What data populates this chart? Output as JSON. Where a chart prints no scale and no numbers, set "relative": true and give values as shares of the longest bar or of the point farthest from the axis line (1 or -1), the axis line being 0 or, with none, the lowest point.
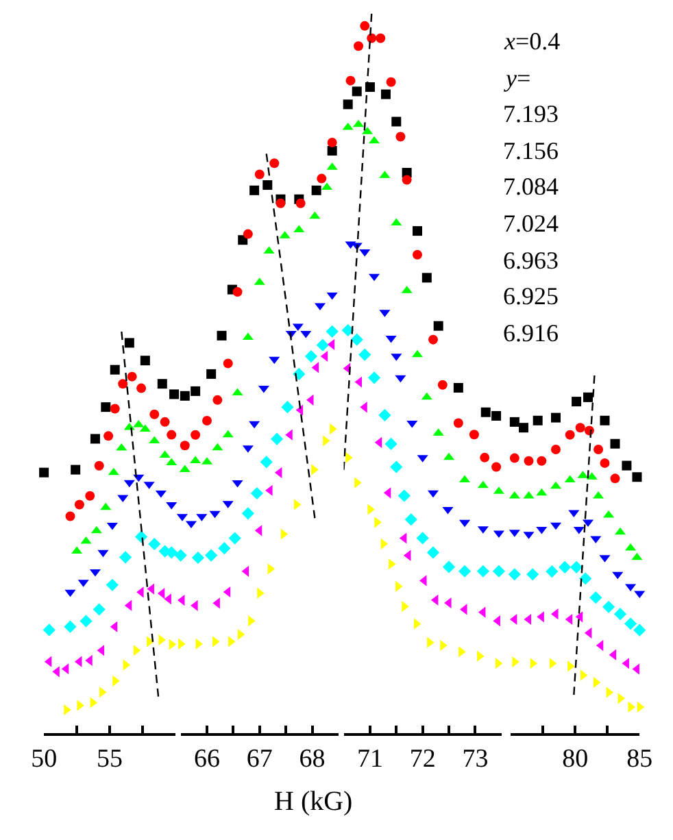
{
  "chart_data": [
    {
      "type": "scatter",
      "relative": true,
      "tick_labels": "x",
      "xlim": [
        50,
        60
      ],
      "xticks": [
        50,
        {
          "value": 52.5,
          "label": null
        },
        55,
        {
          "value": 57.5,
          "label": null
        }
      ],
      "series": [
        {
          "color": "#000000",
          "marker": "square",
          "x": [
            50,
            52.4,
            53.9,
            54.7,
            55.4,
            56.5,
            57.7,
            59.0,
            59.9
          ],
          "values": [
            0.649,
            0.656,
            0.733,
            0.812,
            0.905,
            0.972,
            0.928,
            0.87,
            0.844
          ]
        },
        {
          "color": "#ff0000",
          "marker": "circle",
          "x": [
            52.0,
            52.7,
            53.5,
            54.2,
            54.9,
            55.4,
            56.0,
            56.7,
            57.4,
            58.4,
            59.2,
            59.7
          ],
          "values": [
            0.54,
            0.569,
            0.591,
            0.666,
            0.74,
            0.808,
            0.87,
            0.888,
            0.859,
            0.794,
            0.775,
            0.743
          ]
        },
        {
          "color": "#00ff00",
          "marker": "triangle",
          "x": [
            52.5,
            53.2,
            54.0,
            54.7,
            55.3,
            55.9,
            56.5,
            57.2,
            57.7,
            58.4,
            59.2,
            59.7
          ],
          "values": [
            0.453,
            0.478,
            0.504,
            0.562,
            0.649,
            0.71,
            0.761,
            0.768,
            0.757,
            0.728,
            0.692,
            0.673
          ]
        },
        {
          "color": "#0000ff",
          "marker": "triangle-down",
          "x": [
            52.0,
            53.0,
            53.9,
            54.5,
            55.2,
            56.0,
            56.5,
            57.2,
            58.0,
            58.9,
            59.7
          ],
          "values": [
            0.351,
            0.376,
            0.402,
            0.45,
            0.518,
            0.587,
            0.624,
            0.638,
            0.62,
            0.598,
            0.569
          ]
        },
        {
          "color": "#00ffff",
          "marker": "diamond",
          "x": [
            50.4,
            52.0,
            53.2,
            54.2,
            55.2,
            56.2,
            57.4,
            58.4,
            59.2,
            59.7
          ],
          "values": [
            0.257,
            0.265,
            0.279,
            0.308,
            0.369,
            0.438,
            0.489,
            0.471,
            0.453,
            0.45
          ]
        },
        {
          "color": "#ff00ff",
          "marker": "triangle-left",
          "x": [
            50.4,
            51.0,
            51.7,
            52.7,
            53.5,
            54.4,
            55.4,
            56.5,
            57.4,
            58.2,
            59.0,
            59.5
          ],
          "values": [
            0.178,
            0.153,
            0.16,
            0.178,
            0.181,
            0.206,
            0.265,
            0.318,
            0.351,
            0.359,
            0.348,
            0.334
          ]
        },
        {
          "color": "#ffff00",
          "marker": "triangle-right",
          "x": [
            51.7,
            52.7,
            53.7,
            54.4,
            55.4,
            56.2,
            57.0,
            58.0,
            58.9,
            59.7
          ],
          "values": [
            0.058,
            0.069,
            0.076,
            0.102,
            0.13,
            0.17,
            0.206,
            0.228,
            0.232,
            0.221
          ]
        },
        {
          "type": "line",
          "color": "#000000",
          "marker": "none",
          "line_style": "dashed",
          "x": [
            55.9,
            58.7
          ],
          "values": [
            1,
            0.091
          ]
        }
      ]
    },
    {
      "type": "scatter",
      "relative": true,
      "tick_labels": "x",
      "xlabel": "H (kG)",
      "xlim": [
        65.5,
        68.5
      ],
      "xticks": [
        66,
        {
          "value": 66.5,
          "label": null
        },
        67,
        {
          "value": 67.5,
          "label": null
        },
        68
      ],
      "series": [
        {
          "color": "#000000",
          "marker": "square",
          "x": [
            65.58,
            65.78,
            66.08,
            66.28,
            66.48,
            66.68,
            66.9,
            67.15,
            67.4,
            67.75,
            68.08,
            68.38
          ],
          "values": [
            0.571,
            0.579,
            0.608,
            0.673,
            0.751,
            0.835,
            0.919,
            0.928,
            0.904,
            0.904,
            0.919,
            0.986
          ]
        },
        {
          "color": "#ff0000",
          "marker": "circle",
          "x": [
            65.58,
            65.78,
            66.0,
            66.2,
            66.4,
            66.58,
            66.78,
            67.0,
            67.28,
            67.4,
            67.78,
            68.18,
            68.38
          ],
          "values": [
            0.487,
            0.505,
            0.529,
            0.564,
            0.626,
            0.747,
            0.845,
            0.946,
            0.965,
            0.897,
            0.897,
            0.939,
            1
          ]
        },
        {
          "color": "#00ff00",
          "marker": "triangle",
          "x": [
            65.58,
            65.78,
            66.0,
            66.2,
            66.4,
            66.58,
            66.78,
            67.0,
            67.18,
            67.48,
            67.75,
            68.05,
            68.28,
            68.38
          ],
          "values": [
            0.446,
            0.461,
            0.459,
            0.483,
            0.505,
            0.576,
            0.67,
            0.763,
            0.816,
            0.842,
            0.852,
            0.875,
            0.924,
            0.958
          ]
        },
        {
          "color": "#0000ff",
          "marker": "triangle-down",
          "x": [
            65.53,
            65.7,
            65.9,
            66.15,
            66.4,
            66.58,
            66.78,
            66.9,
            67.08,
            67.28,
            67.6,
            67.73,
            67.88,
            68.15,
            68.38
          ],
          "values": [
            0.367,
            0.355,
            0.367,
            0.372,
            0.389,
            0.424,
            0.483,
            0.524,
            0.584,
            0.633,
            0.677,
            0.689,
            0.677,
            0.724,
            0.742
          ]
        },
        {
          "color": "#00ffff",
          "marker": "diamond",
          "x": [
            65.5,
            65.83,
            66.08,
            66.33,
            66.53,
            66.78,
            66.95,
            67.13,
            67.33,
            67.53,
            67.75,
            67.98,
            68.2,
            68.38
          ],
          "values": [
            0.301,
            0.297,
            0.301,
            0.313,
            0.33,
            0.372,
            0.406,
            0.459,
            0.498,
            0.552,
            0.608,
            0.638,
            0.657,
            0.68
          ]
        },
        {
          "color": "#ff00ff",
          "marker": "triangle-left",
          "x": [
            65.53,
            65.78,
            66.2,
            66.4,
            66.75,
            67.0,
            67.2,
            67.38,
            67.58,
            67.78,
            67.98,
            68.08,
            68.25,
            68.38
          ],
          "values": [
            0.225,
            0.216,
            0.22,
            0.239,
            0.274,
            0.343,
            0.411,
            0.441,
            0.505,
            0.547,
            0.564,
            0.619,
            0.638,
            0.658
          ]
        },
        {
          "color": "#ffff00",
          "marker": "triangle-right",
          "x": [
            65.5,
            65.83,
            66.15,
            66.45,
            66.63,
            66.83,
            67.0,
            67.2,
            67.45,
            67.7,
            68.03,
            68.25,
            68.38
          ],
          "values": [
            0.151,
            0.151,
            0.155,
            0.155,
            0.167,
            0.19,
            0.237,
            0.278,
            0.337,
            0.387,
            0.446,
            0.495,
            0.515
          ]
        },
        {
          "type": "line",
          "color": "#000000",
          "marker": "none",
          "line_style": "dashed",
          "x": [
            67.13,
            68.05
          ],
          "values": [
            0.981,
            0.364
          ]
        }
      ]
    },
    {
      "type": "scatter",
      "relative": true,
      "tick_labels": "x",
      "xlim": [
        70.5,
        73.5
      ],
      "xticks": [
        71,
        {
          "value": 71.5,
          "label": null
        },
        72,
        {
          "value": 72.5,
          "label": null
        },
        73
      ],
      "series": [
        {
          "color": "#000000",
          "marker": "square",
          "x": [
            70.58,
            70.75,
            71.0,
            71.3,
            71.5,
            71.7,
            71.9,
            72.08,
            72.3,
            72.68,
            73.2,
            73.4
          ],
          "values": [
            0.874,
            0.892,
            0.898,
            0.888,
            0.85,
            0.779,
            0.698,
            0.633,
            0.566,
            0.48,
            0.446,
            0.441
          ]
        },
        {
          "color": "#ff0000",
          "marker": "circle",
          "x": [
            70.63,
            70.78,
            70.9,
            71.03,
            71.2,
            71.4,
            71.58,
            71.7,
            71.9,
            72.2,
            72.38,
            72.68,
            72.98,
            73.18,
            73.4
          ],
          "values": [
            0.907,
            0.955,
            0.983,
            0.966,
            0.966,
            0.905,
            0.829,
            0.769,
            0.665,
            0.547,
            0.484,
            0.431,
            0.415,
            0.383,
            0.37
          ]
        },
        {
          "color": "#00ff00",
          "marker": "triangle",
          "x": [
            70.58,
            70.78,
            70.95,
            71.08,
            71.28,
            71.5,
            71.7,
            71.9,
            72.08,
            72.3,
            72.5,
            72.8,
            73.15,
            73.45
          ],
          "values": [
            0.842,
            0.846,
            0.836,
            0.823,
            0.775,
            0.709,
            0.615,
            0.526,
            0.467,
            0.417,
            0.383,
            0.352,
            0.344,
            0.336
          ]
        },
        {
          "color": "#0000ff",
          "marker": "triangle-down",
          "x": [
            70.63,
            70.75,
            70.9,
            71.08,
            71.28,
            71.4,
            71.5,
            71.58,
            71.8,
            72.0,
            72.2,
            72.48,
            72.8,
            73.15,
            73.45
          ],
          "values": [
            0.68,
            0.678,
            0.669,
            0.635,
            0.585,
            0.549,
            0.524,
            0.494,
            0.431,
            0.383,
            0.334,
            0.311,
            0.293,
            0.284,
            0.278
          ]
        },
        {
          "color": "#00ffff",
          "marker": "diamond",
          "x": [
            70.58,
            70.75,
            70.9,
            71.08,
            71.28,
            71.4,
            71.5,
            71.65,
            71.78,
            72.0,
            72.2,
            72.5,
            72.8,
            73.15,
            73.45
          ],
          "values": [
            0.56,
            0.547,
            0.526,
            0.494,
            0.442,
            0.402,
            0.37,
            0.33,
            0.297,
            0.271,
            0.251,
            0.231,
            0.225,
            0.225,
            0.225
          ]
        },
        {
          "color": "#ff00ff",
          "marker": "triangle-left",
          "x": [
            70.58,
            70.8,
            70.9,
            71.18,
            71.35,
            71.65,
            71.73,
            72.03,
            72.25,
            72.5,
            72.8,
            73.15,
            73.43
          ],
          "values": [
            0.507,
            0.488,
            0.453,
            0.404,
            0.334,
            0.271,
            0.247,
            0.212,
            0.185,
            0.181,
            0.172,
            0.168,
            0.156
          ]
        },
        {
          "color": "#ffff00",
          "marker": "triangle-right",
          "x": [
            70.58,
            70.75,
            71.0,
            71.13,
            71.25,
            71.4,
            71.53,
            71.65,
            71.88,
            72.13,
            72.38,
            72.73,
            73.08,
            73.43
          ],
          "values": [
            0.383,
            0.348,
            0.311,
            0.293,
            0.263,
            0.235,
            0.204,
            0.176,
            0.152,
            0.126,
            0.122,
            0.113,
            0.107,
            0.097
          ]
        },
        {
          "type": "line",
          "color": "#000000",
          "marker": "none",
          "line_style": "dashed",
          "x": [
            71.03,
            70.5
          ],
          "values": [
            1,
            0.366
          ]
        }
      ]
    },
    {
      "type": "scatter",
      "relative": true,
      "tick_labels": "x",
      "xlim": [
        75,
        85
      ],
      "xticks": [
        {
          "value": 77.5,
          "label": null
        },
        80,
        {
          "value": 82.5,
          "label": null
        },
        85
      ],
      "annotations": [
        "x=0.4",
        "y=",
        "7.193",
        "7.156",
        "7.084",
        "7.024",
        "6.963",
        "6.925",
        "6.916"
      ],
      "series": [
        {
          "color": "#000000",
          "marker": "square",
          "x": [
            75.3,
            76.0,
            77.1,
            78.5,
            80.1,
            81.0,
            82.3,
            83.1,
            84.0,
            84.8
          ],
          "values": [
            0.87,
            0.854,
            0.874,
            0.882,
            0.927,
            0.939,
            0.874,
            0.809,
            0.748,
            0.716
          ]
        },
        {
          "color": "#ff0000",
          "marker": "circle",
          "x": [
            75.3,
            76.4,
            77.4,
            78.5,
            79.6,
            80.4,
            81.1,
            81.8,
            82.3,
            83.1
          ],
          "values": [
            0.769,
            0.761,
            0.761,
            0.793,
            0.834,
            0.854,
            0.846,
            0.793,
            0.755,
            0.712
          ]
        },
        {
          "color": "#00ff00",
          "marker": "triangle",
          "x": [
            75.3,
            76.4,
            77.4,
            78.5,
            79.6,
            80.6,
            81.3,
            81.8,
            82.6,
            83.5,
            84.3,
            84.8
          ],
          "values": [
            0.663,
            0.663,
            0.671,
            0.69,
            0.708,
            0.72,
            0.716,
            0.663,
            0.609,
            0.562,
            0.517,
            0.491
          ]
        },
        {
          "color": "#0000ff",
          "marker": "triangle-down",
          "x": [
            75.3,
            76.4,
            77.4,
            78.5,
            79.9,
            80.3,
            81.0,
            81.6,
            82.3,
            83.3,
            84.3,
            85.0
          ],
          "values": [
            0.562,
            0.556,
            0.57,
            0.582,
            0.617,
            0.57,
            0.59,
            0.544,
            0.491,
            0.444,
            0.41,
            0.391
          ]
        },
        {
          "color": "#00ffff",
          "marker": "diamond",
          "x": [
            75.3,
            76.7,
            78.2,
            79.2,
            80.1,
            80.8,
            81.6,
            82.6,
            83.5,
            84.3,
            85.0
          ],
          "values": [
            0.444,
            0.444,
            0.452,
            0.464,
            0.464,
            0.432,
            0.379,
            0.353,
            0.333,
            0.306,
            0.288
          ]
        },
        {
          "color": "#ff00ff",
          "marker": "triangle-left",
          "x": [
            75.3,
            76.4,
            77.4,
            78.5,
            79.6,
            80.4,
            81.1,
            82.0,
            83.0,
            84.0,
            84.8
          ],
          "values": [
            0.318,
            0.318,
            0.325,
            0.333,
            0.318,
            0.325,
            0.28,
            0.245,
            0.219,
            0.195,
            0.179
          ]
        },
        {
          "color": "#ffff00",
          "marker": "triangle-right",
          "x": [
            75.3,
            76.7,
            78.2,
            79.6,
            80.6,
            81.6,
            82.6,
            83.5,
            84.3,
            85.0
          ],
          "values": [
            0.199,
            0.195,
            0.195,
            0.187,
            0.162,
            0.142,
            0.114,
            0.097,
            0.073,
            0.073
          ]
        },
        {
          "type": "line",
          "color": "#000000",
          "marker": "none",
          "line_style": "dashed",
          "x": [
            81.5,
            79.9
          ],
          "values": [
            1,
            0.107
          ]
        }
      ]
    }
  ]
}
